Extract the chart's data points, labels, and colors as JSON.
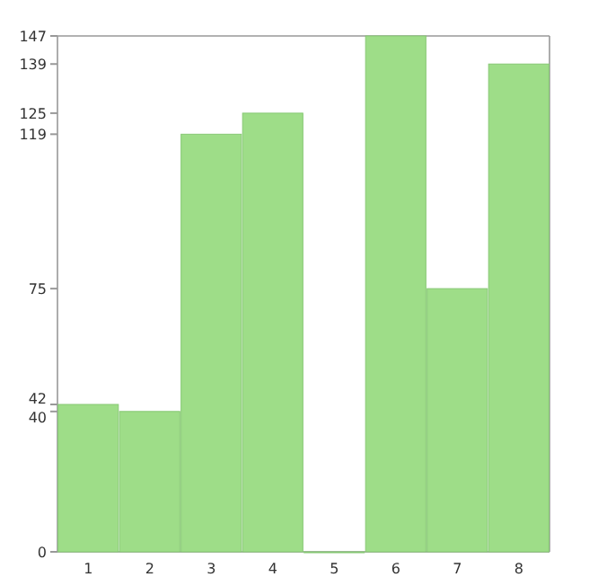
{
  "chart_data": {
    "type": "bar",
    "categories": [
      "1",
      "2",
      "3",
      "4",
      "5",
      "6",
      "7",
      "8"
    ],
    "values": [
      42,
      40,
      119,
      125,
      0,
      147,
      75,
      139
    ],
    "color": "#9edd88",
    "ylim": [
      0,
      147
    ],
    "yticks": [
      0,
      40,
      42,
      75,
      119,
      125,
      139,
      147
    ],
    "grid": false
  }
}
